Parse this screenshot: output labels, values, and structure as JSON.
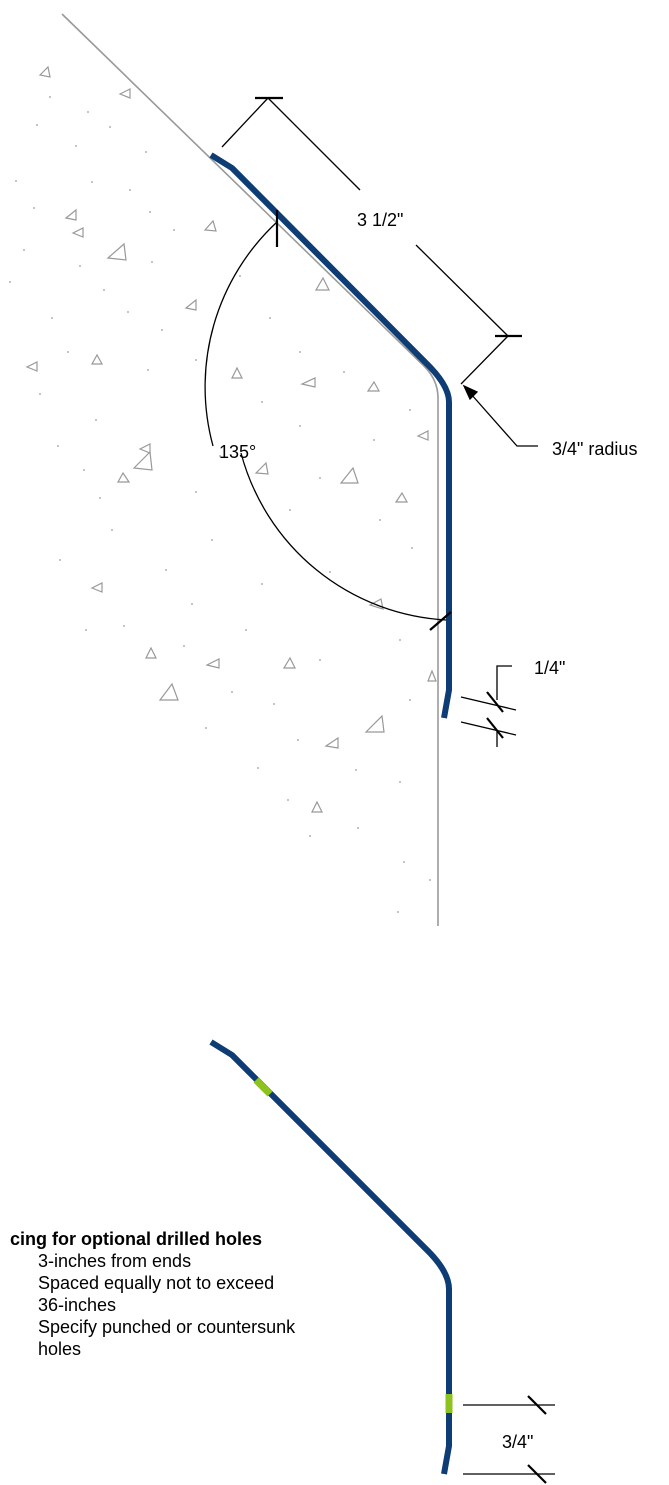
{
  "colors": {
    "flashing": "#0d3d74",
    "hole_marker": "#8ec21f",
    "concrete_outline": "#999999",
    "dimension": "#000000"
  },
  "dimensions": {
    "length": "3 1/2\"",
    "angle": "135°",
    "radius": "3/4\" radius",
    "hem": "1/4\"",
    "end_offset": "3/4\""
  },
  "notes": {
    "heading": "cing for optional drilled holes",
    "lines": [
      "3-inches from ends",
      "Spaced equally not to exceed",
      "36-inches",
      "Specify punched or countersunk",
      "holes"
    ]
  }
}
